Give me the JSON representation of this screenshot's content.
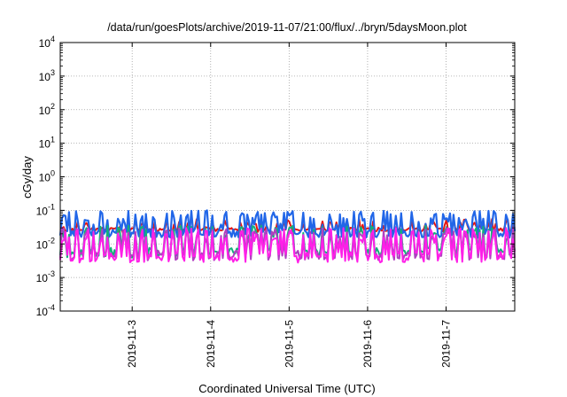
{
  "chart_data": {
    "type": "line",
    "title": "/data/run/goesPlots/archive/2019-11-07/21:00/flux/../bryn/5daysMoon.plot",
    "xlabel": "Coordinated Universal Time (UTC)",
    "ylabel": "cGy/day",
    "y_scale": "log",
    "ylim": [
      0.0001,
      10000
    ],
    "xlim": [
      "2019-11-02T02:00",
      "2019-11-07T21:00"
    ],
    "grid": true,
    "y_ticks": [
      {
        "base": "10",
        "exp": "-4",
        "value": 0.0001
      },
      {
        "base": "10",
        "exp": "-3",
        "value": 0.001
      },
      {
        "base": "10",
        "exp": "-2",
        "value": 0.01
      },
      {
        "base": "10",
        "exp": "-1",
        "value": 0.1
      },
      {
        "base": "10",
        "exp": "0",
        "value": 1
      },
      {
        "base": "10",
        "exp": "1",
        "value": 10
      },
      {
        "base": "10",
        "exp": "2",
        "value": 100
      },
      {
        "base": "10",
        "exp": "3",
        "value": 1000
      },
      {
        "base": "10",
        "exp": "4",
        "value": 10000
      }
    ],
    "x_ticks": [
      {
        "label": "2019-11-3",
        "value": "2019-11-03T00:00"
      },
      {
        "label": "2019-11-4",
        "value": "2019-11-04T00:00"
      },
      {
        "label": "2019-11-5",
        "value": "2019-11-05T00:00"
      },
      {
        "label": "2019-11-6",
        "value": "2019-11-06T00:00"
      },
      {
        "label": "2019-11-7",
        "value": "2019-11-07T00:00"
      }
    ],
    "series": [
      {
        "color": "#e8150f",
        "base": 0.027,
        "low": 0.022,
        "high": 0.055,
        "noise": 0.35,
        "seed": 11
      },
      {
        "color": "#2166e8",
        "base": 0.021,
        "low": 0.01,
        "high": 0.1,
        "noise": 0.9,
        "seed": 23
      },
      {
        "color": "#13b07a",
        "base": 0.0055,
        "low": 0.004,
        "high": 0.035,
        "noise": 1.0,
        "seed": 37
      },
      {
        "color": "#b040c0",
        "base": 0.0045,
        "low": 0.0035,
        "high": 0.03,
        "noise": 1.0,
        "seed": 41
      },
      {
        "color": "#ff1fe8",
        "base": 0.004,
        "low": 0.003,
        "high": 0.03,
        "noise": 1.1,
        "seed": 53
      }
    ]
  }
}
